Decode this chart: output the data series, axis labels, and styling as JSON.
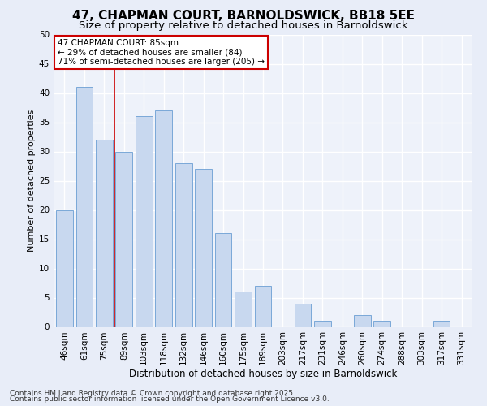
{
  "title": "47, CHAPMAN COURT, BARNOLDSWICK, BB18 5EE",
  "subtitle": "Size of property relative to detached houses in Barnoldswick",
  "xlabel": "Distribution of detached houses by size in Barnoldswick",
  "ylabel": "Number of detached properties",
  "categories": [
    "46sqm",
    "61sqm",
    "75sqm",
    "89sqm",
    "103sqm",
    "118sqm",
    "132sqm",
    "146sqm",
    "160sqm",
    "175sqm",
    "189sqm",
    "203sqm",
    "217sqm",
    "231sqm",
    "246sqm",
    "260sqm",
    "274sqm",
    "288sqm",
    "303sqm",
    "317sqm",
    "331sqm"
  ],
  "values": [
    20,
    41,
    32,
    30,
    36,
    37,
    28,
    27,
    16,
    6,
    7,
    0,
    4,
    1,
    0,
    2,
    1,
    0,
    0,
    1,
    0
  ],
  "bar_color": "#c8d8ef",
  "bar_edge_color": "#7aa8d8",
  "vline_x": 2.5,
  "vline_color": "#cc0000",
  "annotation_box_text": "47 CHAPMAN COURT: 85sqm\n← 29% of detached houses are smaller (84)\n71% of semi-detached houses are larger (205) →",
  "annotation_box_color": "#cc0000",
  "annotation_box_fill": "#ffffff",
  "ylim": [
    0,
    50
  ],
  "yticks": [
    0,
    5,
    10,
    15,
    20,
    25,
    30,
    35,
    40,
    45,
    50
  ],
  "footer_line1": "Contains HM Land Registry data © Crown copyright and database right 2025.",
  "footer_line2": "Contains public sector information licensed under the Open Government Licence v3.0.",
  "bg_color": "#e8edf8",
  "plot_bg_color": "#eef2fa",
  "grid_color": "#ffffff",
  "title_fontsize": 11,
  "subtitle_fontsize": 9.5,
  "xlabel_fontsize": 8.5,
  "ylabel_fontsize": 8,
  "tick_fontsize": 7.5,
  "annot_fontsize": 7.5,
  "footer_fontsize": 6.5
}
